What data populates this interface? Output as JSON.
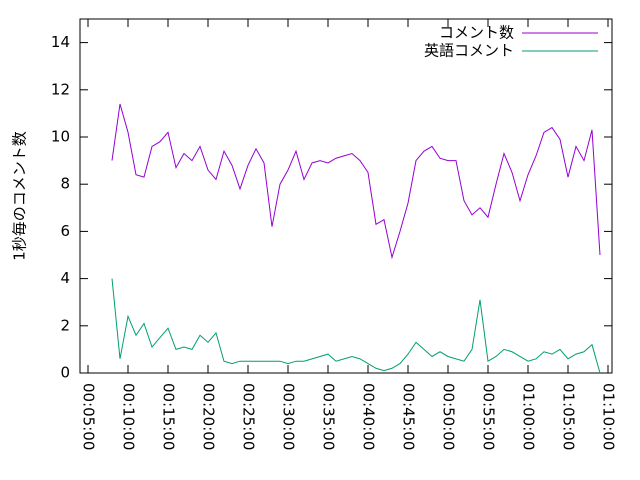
{
  "chart_data": {
    "type": "line",
    "ylabel": "1秒毎のコメント数",
    "x": [
      480,
      540,
      600,
      660,
      720,
      780,
      840,
      900,
      960,
      1020,
      1080,
      1140,
      1200,
      1260,
      1320,
      1380,
      1440,
      1500,
      1560,
      1620,
      1680,
      1740,
      1800,
      1860,
      1920,
      1980,
      2040,
      2100,
      2160,
      2220,
      2280,
      2340,
      2400,
      2460,
      2520,
      2580,
      2640,
      2700,
      2760,
      2820,
      2880,
      2940,
      3000,
      3060,
      3120,
      3180,
      3240,
      3300,
      3360,
      3420,
      3480,
      3540,
      3600,
      3660,
      3720,
      3780,
      3840,
      3900,
      3960,
      4020,
      4080,
      4140
    ],
    "series": [
      {
        "name": "コメント数",
        "color": "#9400d3",
        "values": [
          9.0,
          11.4,
          10.2,
          8.4,
          8.3,
          9.6,
          9.8,
          10.2,
          8.7,
          9.3,
          9.0,
          9.6,
          8.6,
          8.2,
          9.4,
          8.8,
          7.8,
          8.8,
          9.5,
          8.9,
          6.2,
          8.0,
          8.6,
          9.4,
          8.2,
          8.9,
          9.0,
          8.9,
          9.1,
          9.2,
          9.3,
          9.0,
          8.5,
          6.3,
          6.5,
          4.9,
          6.0,
          7.2,
          9.0,
          9.4,
          9.6,
          9.1,
          9.0,
          9.0,
          7.3,
          6.7,
          7.0,
          6.6,
          8.0,
          9.3,
          8.5,
          7.3,
          8.4,
          9.2,
          10.2,
          10.4,
          9.9,
          8.3,
          9.6,
          9.0,
          10.3,
          5.0
        ]
      },
      {
        "name": "英語コメント",
        "color": "#009e73",
        "values": [
          4.0,
          0.6,
          2.4,
          1.6,
          2.1,
          1.1,
          1.5,
          1.9,
          1.0,
          1.1,
          1.0,
          1.6,
          1.3,
          1.7,
          0.5,
          0.4,
          0.5,
          0.5,
          0.5,
          0.5,
          0.5,
          0.5,
          0.4,
          0.5,
          0.5,
          0.6,
          0.7,
          0.8,
          0.5,
          0.6,
          0.7,
          0.6,
          0.4,
          0.2,
          0.1,
          0.2,
          0.4,
          0.8,
          1.3,
          1.0,
          0.7,
          0.9,
          0.7,
          0.6,
          0.5,
          1.0,
          3.1,
          0.5,
          0.7,
          1.0,
          0.9,
          0.7,
          0.5,
          0.6,
          0.9,
          0.8,
          1.0,
          0.6,
          0.8,
          0.9,
          1.2,
          0.0
        ]
      }
    ],
    "xlim": [
      240,
      4230
    ],
    "xticks": [
      {
        "value": 300,
        "label": "00:05:00"
      },
      {
        "value": 600,
        "label": "00:10:00"
      },
      {
        "value": 900,
        "label": "00:15:00"
      },
      {
        "value": 1200,
        "label": "00:20:00"
      },
      {
        "value": 1500,
        "label": "00:25:00"
      },
      {
        "value": 1800,
        "label": "00:30:00"
      },
      {
        "value": 2100,
        "label": "00:35:00"
      },
      {
        "value": 2400,
        "label": "00:40:00"
      },
      {
        "value": 2700,
        "label": "00:45:00"
      },
      {
        "value": 3000,
        "label": "00:50:00"
      },
      {
        "value": 3300,
        "label": "00:55:00"
      },
      {
        "value": 3600,
        "label": "01:00:00"
      },
      {
        "value": 3900,
        "label": "01:05:00"
      },
      {
        "value": 4200,
        "label": "01:10:00"
      }
    ],
    "ylim": [
      0,
      15
    ],
    "yticks": [
      0,
      2,
      4,
      6,
      8,
      10,
      12,
      14
    ],
    "legend": "top right",
    "grid": false
  }
}
